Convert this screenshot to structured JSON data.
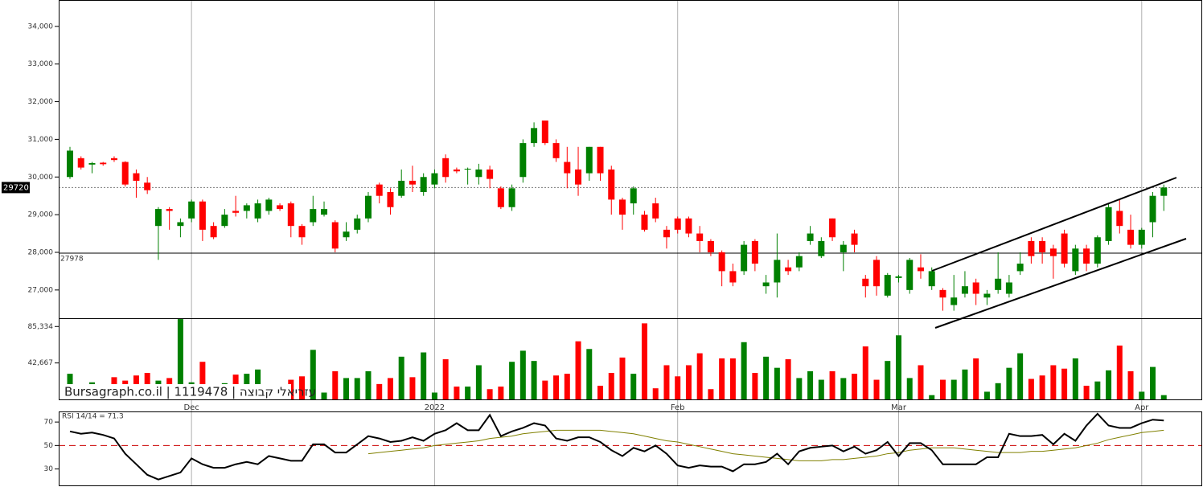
{
  "chart_data": {
    "type": "candlestick",
    "categories": [
      null,
      null,
      null,
      null,
      null,
      null,
      null,
      null,
      null,
      null,
      null,
      "Dec",
      null,
      null,
      null,
      null,
      null,
      null,
      null,
      null,
      null,
      null,
      null,
      null,
      null,
      null,
      null,
      null,
      null,
      null,
      null,
      null,
      null,
      "2022",
      null,
      null,
      null,
      null,
      null,
      null,
      null,
      null,
      null,
      null,
      null,
      null,
      null,
      null,
      null,
      null,
      null,
      null,
      null,
      null,
      null,
      "Feb",
      null,
      null,
      null,
      null,
      null,
      null,
      null,
      null,
      null,
      null,
      null,
      null,
      null,
      null,
      null,
      null,
      null,
      null,
      null,
      "Mar",
      null,
      null,
      null,
      null,
      null,
      null,
      null,
      null,
      null,
      null,
      null,
      null,
      null,
      null,
      null,
      null,
      null,
      null,
      null,
      null,
      null,
      "Apr",
      null,
      null
    ],
    "up_color": "#008000",
    "down_color": "#ff0000",
    "ylim": [
      26250,
      34700
    ],
    "yticks": [
      {
        "value": 27000,
        "label": "27,000"
      },
      {
        "value": 28000,
        "label": "28,000"
      },
      {
        "value": 29000,
        "label": "29,000"
      },
      {
        "value": 30000,
        "label": "30,000"
      },
      {
        "value": 31000,
        "label": "31,000"
      },
      {
        "value": 32000,
        "label": "32,000"
      },
      {
        "value": 33000,
        "label": "33,000"
      },
      {
        "value": 34000,
        "label": "34,000"
      }
    ],
    "hline": 27978,
    "watermark": "Bursagraph.co.il | 1119478 | עזריאלי קבוצה",
    "series": {
      "open": [
        30000,
        30500,
        30330,
        30380,
        30500,
        30400,
        30100,
        29850,
        28700,
        29150,
        28700,
        28900,
        29350,
        28700,
        28700,
        29100,
        29100,
        28900,
        29100,
        29250,
        29300,
        28700,
        28800,
        29000,
        28800,
        28400,
        28600,
        28900,
        29800,
        29600,
        29500,
        29900,
        29600,
        29800,
        30500,
        30200,
        30200,
        30000,
        30200,
        29700,
        29200,
        30000,
        30900,
        31500,
        30900,
        30400,
        30200,
        30100,
        30800,
        30200,
        29400,
        29300,
        29000,
        29300,
        28600,
        28900,
        28900,
        28500,
        28300,
        28000,
        27500,
        27500,
        28300,
        27100,
        27200,
        27600,
        27600,
        28300,
        27900,
        28900,
        28000,
        28500,
        27300,
        27800,
        26850,
        27320,
        27000,
        27600,
        27100,
        27000,
        26600,
        26900,
        27200,
        26800,
        27000,
        26900,
        27500,
        28300,
        28300,
        28100,
        28500,
        27500,
        28100,
        27700,
        28300,
        29100,
        28600,
        28200,
        28800,
        29500
      ],
      "high": [
        30800,
        30550,
        30400,
        30400,
        30550,
        30420,
        30200,
        30000,
        29200,
        29200,
        28900,
        29400,
        29400,
        28800,
        29150,
        29500,
        29300,
        29400,
        29450,
        29300,
        29350,
        28750,
        29500,
        29350,
        28850,
        28800,
        29000,
        29600,
        29850,
        29700,
        30200,
        30300,
        30100,
        30200,
        30600,
        30250,
        30250,
        30350,
        30300,
        29750,
        29800,
        31000,
        31450,
        31500,
        31000,
        30800,
        30800,
        30800,
        30800,
        30300,
        29450,
        29750,
        29100,
        29450,
        28700,
        28950,
        28950,
        28700,
        28350,
        28050,
        27700,
        28300,
        28350,
        27400,
        28500,
        27800,
        28000,
        28700,
        28400,
        28900,
        28300,
        28600,
        27400,
        27900,
        27450,
        27400,
        27850,
        27950,
        27600,
        27050,
        27400,
        27500,
        27300,
        27000,
        28000,
        27400,
        28000,
        28400,
        28400,
        28200,
        28600,
        28200,
        28200,
        28450,
        29300,
        29400,
        29000,
        28650,
        29600,
        29800
      ],
      "low": [
        29950,
        30200,
        30100,
        30300,
        30400,
        29750,
        29450,
        29550,
        27800,
        28600,
        28400,
        28800,
        28300,
        28350,
        28650,
        28950,
        28900,
        28800,
        29000,
        29100,
        28400,
        28200,
        28700,
        28950,
        28000,
        28300,
        28500,
        28800,
        29300,
        29000,
        29450,
        29600,
        29500,
        29700,
        29850,
        30100,
        29800,
        29800,
        29700,
        29150,
        29100,
        29850,
        30800,
        30850,
        30400,
        29700,
        29500,
        29900,
        29900,
        29000,
        28600,
        29000,
        28550,
        28800,
        28100,
        28500,
        28400,
        28000,
        27900,
        27100,
        27100,
        27400,
        27500,
        26900,
        26800,
        27400,
        27500,
        28200,
        27850,
        28300,
        27500,
        28000,
        26800,
        26850,
        26800,
        27200,
        26900,
        27300,
        27000,
        26450,
        26450,
        26800,
        26600,
        26600,
        26900,
        26800,
        27400,
        27700,
        27700,
        27300,
        27600,
        27400,
        27500,
        27600,
        28200,
        28500,
        28100,
        28100,
        28400,
        29100
      ],
      "close": [
        30700,
        30250,
        30370,
        30340,
        30450,
        29800,
        29900,
        29650,
        29150,
        29100,
        28800,
        29350,
        28600,
        28400,
        29000,
        29050,
        29250,
        29300,
        29400,
        29150,
        28700,
        28400,
        29150,
        29150,
        28100,
        28550,
        28900,
        29500,
        29500,
        29200,
        29900,
        29800,
        30000,
        30100,
        30000,
        30150,
        30220,
        30200,
        29950,
        29200,
        29700,
        30900,
        31300,
        30900,
        30500,
        30100,
        29800,
        30800,
        30100,
        29400,
        29000,
        29700,
        28600,
        28900,
        28400,
        28600,
        28500,
        28300,
        28000,
        27500,
        27200,
        28200,
        27700,
        27200,
        27800,
        27500,
        27900,
        28500,
        28300,
        28400,
        28200,
        28200,
        27100,
        27100,
        27400,
        27360,
        27800,
        27500,
        27500,
        26800,
        26800,
        27100,
        26900,
        26900,
        27300,
        27200,
        27700,
        27900,
        28000,
        27900,
        27700,
        28100,
        27700,
        28400,
        29200,
        28700,
        28200,
        28600,
        29500,
        29720
      ]
    },
    "volume": {
      "values": [
        30000,
        15000,
        20000,
        15000,
        26000,
        22000,
        28000,
        31000,
        22000,
        25000,
        94000,
        20000,
        44000,
        15000,
        19000,
        29000,
        30000,
        35000,
        15000,
        15000,
        23000,
        27000,
        58000,
        8000,
        33000,
        25000,
        25000,
        33000,
        18000,
        25000,
        50000,
        26000,
        55000,
        8000,
        47000,
        15000,
        15000,
        40000,
        12000,
        15000,
        44000,
        57000,
        45000,
        22000,
        28000,
        30000,
        68000,
        59000,
        16000,
        31000,
        49000,
        30000,
        89000,
        13000,
        40000,
        27000,
        40000,
        54000,
        12000,
        48000,
        48000,
        67000,
        31000,
        50000,
        37000,
        47000,
        25000,
        33000,
        23000,
        33000,
        25000,
        30000,
        62000,
        23000,
        45000,
        75000,
        25000,
        40000,
        5000,
        23000,
        23000,
        35000,
        48000,
        9000,
        19000,
        37000,
        54000,
        24000,
        28000,
        40000,
        36000,
        48000,
        16000,
        21000,
        34000,
        63000,
        33000,
        9000,
        38000,
        5000
      ],
      "ylim": [
        0,
        95000
      ],
      "yticks": [
        {
          "value": 42667,
          "label": "42,667"
        },
        {
          "value": 85334,
          "label": "85,334"
        }
      ]
    },
    "rsi": {
      "label": "RSI 14/14 = 71.3",
      "color": "#000000",
      "ma_color": "#808000",
      "ref_color": "#cc0000",
      "values": [
        62,
        60,
        61,
        59,
        56,
        43,
        34,
        25,
        21,
        24,
        27,
        39,
        34,
        31,
        31,
        34,
        36,
        34,
        41,
        39,
        37,
        37,
        51,
        51,
        44,
        44,
        51,
        58,
        56,
        53,
        54,
        57,
        54,
        60,
        63,
        69,
        63,
        63,
        76,
        58,
        62,
        65,
        69,
        67,
        56,
        54,
        57,
        57,
        53,
        46,
        41,
        48,
        45,
        50,
        43,
        33,
        31,
        33,
        32,
        32,
        28,
        34,
        34,
        36,
        43,
        34,
        45,
        48,
        49,
        50,
        45,
        49,
        43,
        46,
        53,
        41,
        52,
        52,
        46,
        34,
        34,
        34,
        34,
        40,
        40,
        60,
        58,
        58,
        59,
        51,
        60,
        54,
        67,
        77,
        67,
        65,
        65,
        69,
        72,
        71.3
      ],
      "ma": [
        null,
        null,
        null,
        null,
        null,
        null,
        null,
        null,
        null,
        null,
        null,
        null,
        null,
        null,
        null,
        null,
        null,
        null,
        null,
        null,
        null,
        null,
        null,
        null,
        null,
        null,
        null,
        43,
        44,
        45,
        46,
        47,
        48,
        50,
        51,
        52,
        53,
        54,
        56,
        57,
        58,
        60,
        61,
        62,
        63,
        63,
        63,
        63,
        63,
        62,
        61,
        60,
        58,
        56,
        54,
        53,
        51,
        49,
        47,
        45,
        43,
        42,
        41,
        40,
        39,
        38,
        37,
        37,
        37,
        38,
        38,
        39,
        40,
        41,
        43,
        44,
        46,
        47,
        48,
        48,
        48,
        47,
        46,
        45,
        44,
        44,
        44,
        45,
        45,
        46,
        47,
        48,
        50,
        52,
        55,
        57,
        59,
        61,
        62,
        63
      ],
      "ylim": [
        16,
        79
      ],
      "yticks": [
        30,
        50,
        70
      ]
    }
  }
}
